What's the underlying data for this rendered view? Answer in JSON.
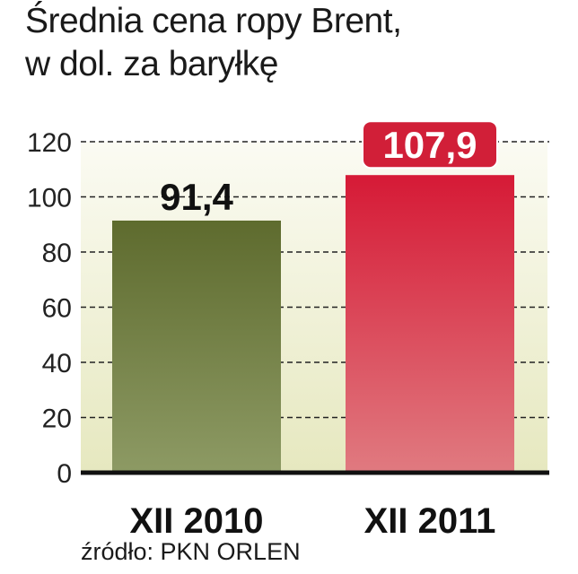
{
  "title_line1": "Średnia cena ropy Brent,",
  "title_line2": "w dol. za baryłkę",
  "source": "źródło: PKN ORLEN",
  "chart_data": {
    "type": "bar",
    "categories": [
      "XII 2010",
      "XII 2011"
    ],
    "values": [
      91.4,
      107.9
    ],
    "value_labels": [
      "91,4",
      "107,9"
    ],
    "ylim": [
      0,
      120
    ],
    "yticks": [
      0,
      20,
      40,
      60,
      80,
      100,
      120
    ],
    "grid": "dashed",
    "colors": {
      "bar1_top": "#5e6b2e",
      "bar1_bottom": "#8d9a64",
      "bar2_top": "#d61a36",
      "bar2_bottom": "#e07a80",
      "label2_bg": "#d11f38",
      "plot_bg_top": "#fbfbf3",
      "plot_bg_bottom": "#e6e8bf"
    }
  }
}
